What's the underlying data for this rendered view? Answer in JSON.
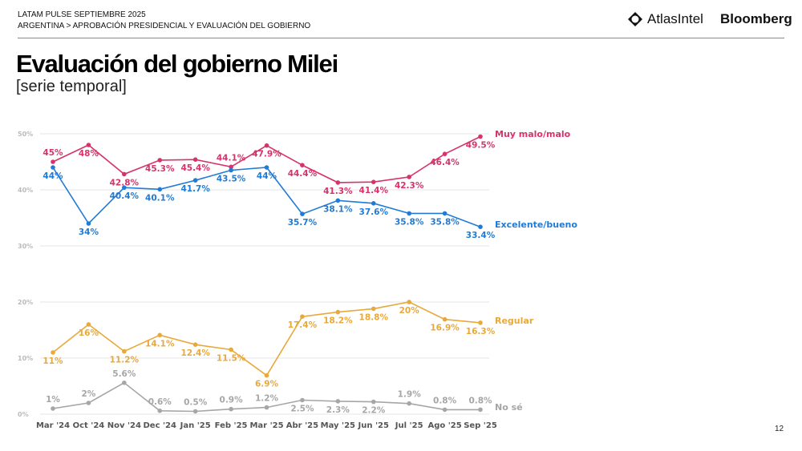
{
  "header": {
    "line1": "LATAM PULSE SEPTIEMBRE 2025",
    "line2": "ARGENTINA > APROBACIÓN PRESIDENCIAL Y EVALUACIÓN DEL GOBIERNO",
    "logo_atlas": "AtlasIntel",
    "logo_bloomberg": "Bloomberg"
  },
  "title": "Evaluación del gobierno Milei",
  "subtitle": "[serie temporal]",
  "page_number": "12",
  "chart_data": {
    "type": "line",
    "categories": [
      "Mar '24",
      "Oct '24",
      "Nov '24",
      "Dec '24",
      "Jan '25",
      "Feb '25",
      "Mar '25",
      "Abr '25",
      "May '25",
      "Jun '25",
      "Jul '25",
      "Ago '25",
      "Sep '25"
    ],
    "ylim": [
      0,
      50
    ],
    "yticks": [
      "0%",
      "10%",
      "20%",
      "30%",
      "40%",
      "50%"
    ],
    "grid": true,
    "legend": "right-end labels",
    "series": [
      {
        "name": "Muy malo/malo",
        "color": "#d6336c",
        "values": [
          45,
          48,
          42.8,
          45.3,
          45.4,
          44.1,
          47.9,
          44.4,
          41.3,
          41.4,
          42.3,
          46.4,
          49.5
        ],
        "labels": [
          "45%",
          "48%",
          "42.8%",
          "45.3%",
          "45.4%",
          "44.1%",
          "47.9%",
          "44.4%",
          "41.3%",
          "41.4%",
          "42.3%",
          "46.4%",
          "49.5%"
        ]
      },
      {
        "name": "Excelente/bueno",
        "color": "#1f7bd6",
        "values": [
          44,
          34,
          40.4,
          40.1,
          41.7,
          43.5,
          44,
          35.7,
          38.1,
          37.6,
          35.8,
          35.8,
          33.4
        ],
        "labels": [
          "44%",
          "34%",
          "40.4%",
          "40.1%",
          "41.7%",
          "43.5%",
          "44%",
          "35.7%",
          "38.1%",
          "37.6%",
          "35.8%",
          "35.8%",
          "33.4%"
        ]
      },
      {
        "name": "Regular",
        "color": "#e8a93a",
        "values": [
          11,
          16,
          11.2,
          14.1,
          12.4,
          11.5,
          6.9,
          17.4,
          18.2,
          18.8,
          20,
          16.9,
          16.3
        ],
        "labels": [
          "11%",
          "16%",
          "11.2%",
          "14.1%",
          "12.4%",
          "11.5%",
          "6.9%",
          "17.4%",
          "18.2%",
          "18.8%",
          "20%",
          "16.9%",
          "16.3%"
        ]
      },
      {
        "name": "No sé",
        "color": "#a6a6a6",
        "values": [
          1,
          2,
          5.6,
          0.6,
          0.5,
          0.9,
          1.2,
          2.5,
          2.3,
          2.2,
          1.9,
          0.8,
          0.8
        ],
        "labels": [
          "1%",
          "2%",
          "5.6%",
          "0.6%",
          "0.5%",
          "0.9%",
          "1.2%",
          "2.5%",
          "2.3%",
          "2.2%",
          "1.9%",
          "0.8%",
          "0.8%"
        ]
      }
    ]
  }
}
